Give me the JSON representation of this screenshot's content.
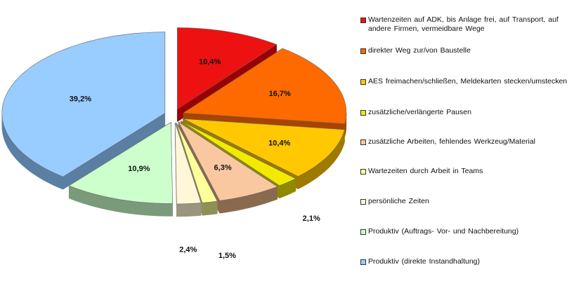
{
  "chart_data": {
    "type": "pie",
    "style": "exploded 3D pie",
    "legend_position": "right",
    "slices": [
      {
        "label": "Wartenzeiten  auf ADK, bis Anlage frei,  auf Transport,  auf andere  Firmen, vermeidbare Wege",
        "value": 10.4,
        "value_label": "10,4%",
        "color": "#ee1111",
        "shade": "#9a0000"
      },
      {
        "label": "direkter  Weg zur/von Baustelle",
        "value": 16.7,
        "value_label": "16,7%",
        "color": "#ff6a00",
        "shade": "#a84300"
      },
      {
        "label": "AES freimachen/schließen,   Meldekarten stecken/umstecken",
        "value": 10.4,
        "value_label": "10,4%",
        "color": "#ffc800",
        "shade": "#9e7a00"
      },
      {
        "label": "zusätzliche/verlängerte    Pausen",
        "value": 2.1,
        "value_label": "2,1%",
        "color": "#f2ea00",
        "shade": "#8f8900"
      },
      {
        "label": "zusätzliche  Arbeiten,  fehlendes   Werkzeug/Material",
        "value": 6.3,
        "value_label": "6,3%",
        "color": "#f9c8a0",
        "shade": "#8a6a4e"
      },
      {
        "label": "Wartezeiten  durch  Arbeit  in Teams",
        "value": 1.5,
        "value_label": "1,5%",
        "color": "#ffff99",
        "shade": "#8f8f58"
      },
      {
        "label": "persönliche  Zeiten",
        "value": 2.4,
        "value_label": "2,4%",
        "color": "#fff7d8",
        "shade": "#9a9480"
      },
      {
        "label": "Produktiv   (Auftrags-  Vor-  und  Nachbereitung)",
        "value": 10.9,
        "value_label": "10,9%",
        "color": "#ccffcc",
        "shade": "#7a9a7a"
      },
      {
        "label": "Produktiv   (direkte  Instandhaltung)",
        "value": 39.2,
        "value_label": "39,2%",
        "color": "#99ccff",
        "shade": "#5b7fa3"
      }
    ]
  }
}
